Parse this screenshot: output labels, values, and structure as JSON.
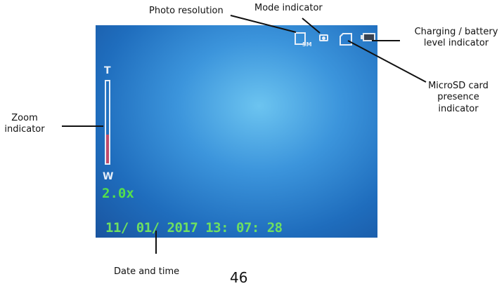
{
  "camera_screen": {
    "photo_resolution_value": "5M",
    "zoom_top_label": "T",
    "zoom_bottom_label": "W",
    "zoom_level": 0.35,
    "zoom_value": "2.0x",
    "datetime": "11/ 01/ 2017 13: 07: 28"
  },
  "callouts": {
    "photo_resolution": "Photo resolution",
    "mode_indicator": "Mode indicator",
    "battery": "Charging / battery level indicator",
    "microsd": "MicroSD card presence indicator",
    "zoom": "Zoom indicator",
    "date_time": "Date and time"
  },
  "page_number": "46",
  "icons": [
    "photo-resolution-icon",
    "camera-mode-icon",
    "microsd-card-icon",
    "battery-icon"
  ],
  "colors": {
    "osd_green": "#55e04a",
    "zoom_fill": "#c04a6a",
    "screen_blue": "#1f6dbd"
  }
}
